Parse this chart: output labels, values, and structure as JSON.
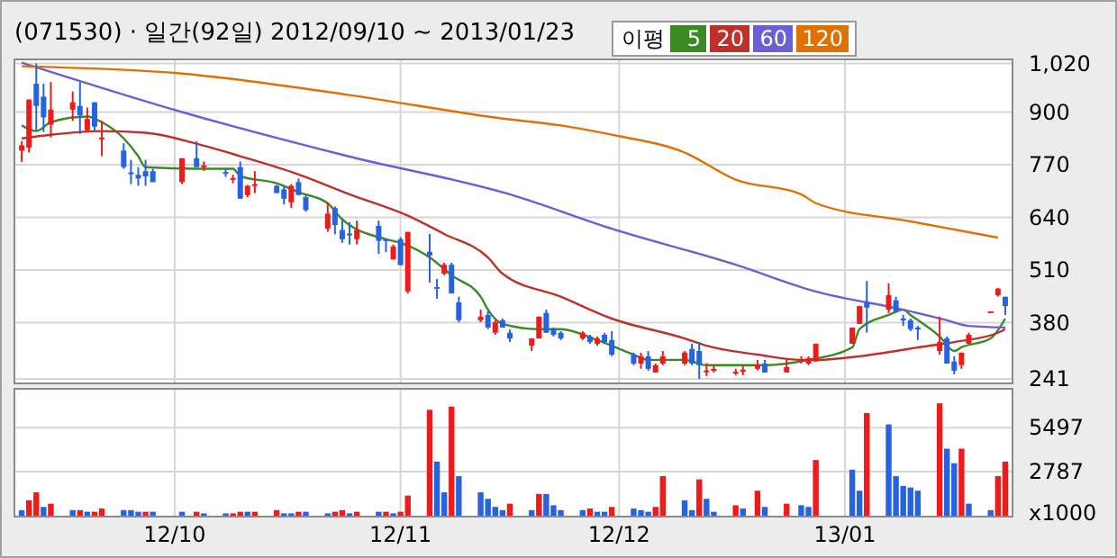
{
  "chart_data": [
    {
      "type": "candlestick",
      "title": "(071530) · 일간(92일) 2012/09/10 ~ 2013/01/23",
      "legend_title": "이평",
      "legend": "top",
      "grid": true,
      "tick_labels": "y",
      "x": [
        "2012-09-10",
        "2012-09-11",
        "2012-09-12",
        "2012-09-13",
        "2012-09-14",
        "2012-09-17",
        "2012-09-18",
        "2012-09-19",
        "2012-09-20",
        "2012-09-21",
        "2012-09-24",
        "2012-09-25",
        "2012-09-26",
        "2012-09-27",
        "2012-09-28",
        "2012-10-02",
        "2012-10-04",
        "2012-10-05",
        "2012-10-08",
        "2012-10-09",
        "2012-10-10",
        "2012-10-11",
        "2012-10-12",
        "2012-10-15",
        "2012-10-16",
        "2012-10-17",
        "2012-10-18",
        "2012-10-19",
        "2012-10-22",
        "2012-10-23",
        "2012-10-24",
        "2012-10-25",
        "2012-10-26",
        "2012-10-29",
        "2012-10-30",
        "2012-10-31",
        "2012-11-01",
        "2012-11-02",
        "2012-11-05",
        "2012-11-06",
        "2012-11-07",
        "2012-11-08",
        "2012-11-09",
        "2012-11-12",
        "2012-11-13",
        "2012-11-14",
        "2012-11-15",
        "2012-11-16",
        "2012-11-19",
        "2012-11-20",
        "2012-11-21",
        "2012-11-22",
        "2012-11-23",
        "2012-11-26",
        "2012-11-27",
        "2012-11-28",
        "2012-11-29",
        "2012-11-30",
        "2012-12-03",
        "2012-12-04",
        "2012-12-05",
        "2012-12-06",
        "2012-12-07",
        "2012-12-10",
        "2012-12-11",
        "2012-12-12",
        "2012-12-13",
        "2012-12-14",
        "2012-12-17",
        "2012-12-18",
        "2012-12-20",
        "2012-12-21",
        "2012-12-24",
        "2012-12-26",
        "2012-12-27",
        "2012-12-28",
        "2013-01-02",
        "2013-01-03",
        "2013-01-04",
        "2013-01-07",
        "2013-01-08",
        "2013-01-09",
        "2013-01-10",
        "2013-01-11",
        "2013-01-14",
        "2013-01-15",
        "2013-01-16",
        "2013-01-17",
        "2013-01-18",
        "2013-01-21",
        "2013-01-22",
        "2013-01-23"
      ],
      "ohlc": [
        [
          805,
          828,
          777,
          818
        ],
        [
          812,
          931,
          800,
          931
        ],
        [
          970,
          1020,
          855,
          915
        ],
        [
          938,
          970,
          851,
          887
        ],
        [
          869,
          974,
          837,
          906
        ],
        [
          906,
          951,
          878,
          924
        ],
        [
          915,
          974,
          846,
          892
        ],
        [
          855,
          911,
          855,
          883
        ],
        [
          924,
          924,
          855,
          864
        ],
        [
          837,
          878,
          791,
          837
        ],
        [
          805,
          823,
          760,
          764
        ],
        [
          751,
          782,
          722,
          748
        ],
        [
          745,
          764,
          718,
          736
        ],
        [
          754,
          782,
          718,
          741
        ],
        [
          754,
          760,
          727,
          727
        ],
        [
          727,
          786,
          722,
          786
        ],
        [
          786,
          828,
          764,
          764
        ],
        [
          764,
          778,
          755,
          768
        ],
        [
          752,
          760,
          740,
          748
        ],
        [
          733,
          745,
          724,
          737
        ],
        [
          764,
          778,
          686,
          686
        ],
        [
          695,
          720,
          690,
          718
        ],
        [
          720,
          754,
          700,
          722
        ],
        [
          718,
          720,
          700,
          700
        ],
        [
          709,
          718,
          672,
          686
        ],
        [
          677,
          722,
          663,
          718
        ],
        [
          727,
          736,
          695,
          695
        ],
        [
          690,
          694,
          654,
          658
        ],
        [
          612,
          676,
          604,
          649
        ],
        [
          663,
          667,
          598,
          621
        ],
        [
          609,
          632,
          577,
          586
        ],
        [
          600,
          628,
          573,
          596
        ],
        [
          586,
          632,
          573,
          609
        ],
        [
          619,
          632,
          550,
          582
        ],
        [
          586,
          586,
          554,
          582
        ],
        [
          536,
          573,
          536,
          568
        ],
        [
          586,
          591,
          522,
          522
        ],
        [
          457,
          604,
          452,
          604
        ],
        [
          555,
          599,
          479,
          546
        ],
        [
          468,
          488,
          439,
          464
        ],
        [
          501,
          528,
          497,
          523
        ],
        [
          523,
          528,
          452,
          452
        ],
        [
          430,
          444,
          381,
          386
        ],
        [
          386,
          412,
          381,
          395
        ],
        [
          399,
          408,
          364,
          368
        ],
        [
          355,
          386,
          350,
          381
        ],
        [
          386,
          390,
          368,
          368
        ],
        [
          355,
          363,
          332,
          341
        ],
        [
          323,
          341,
          310,
          341
        ],
        [
          341,
          395,
          341,
          395
        ],
        [
          404,
          412,
          355,
          355
        ],
        [
          364,
          368,
          346,
          350
        ],
        [
          355,
          359,
          337,
          341
        ],
        [
          341,
          359,
          337,
          355
        ],
        [
          346,
          350,
          328,
          332
        ],
        [
          328,
          346,
          323,
          341
        ],
        [
          350,
          355,
          328,
          332
        ],
        [
          337,
          359,
          297,
          301
        ],
        [
          301,
          306,
          275,
          279
        ],
        [
          279,
          306,
          266,
          297
        ],
        [
          297,
          310,
          261,
          266
        ],
        [
          257,
          279,
          257,
          275
        ],
        [
          279,
          310,
          275,
          297
        ],
        [
          279,
          310,
          275,
          306
        ],
        [
          315,
          328,
          275,
          279
        ],
        [
          310,
          332,
          241,
          275
        ],
        [
          259,
          280,
          248,
          262
        ],
        [
          261,
          275,
          257,
          266
        ],
        [
          255,
          266,
          250,
          259
        ],
        [
          259,
          275,
          250,
          264
        ],
        [
          266,
          288,
          262,
          275
        ],
        [
          279,
          288,
          257,
          257
        ],
        [
          257,
          292,
          257,
          270
        ],
        [
          284,
          297,
          279,
          288
        ],
        [
          279,
          297,
          275,
          292
        ],
        [
          284,
          328,
          284,
          328
        ],
        [
          328,
          368,
          328,
          368
        ],
        [
          377,
          421,
          377,
          421
        ],
        [
          430,
          483,
          355,
          417
        ],
        [
          412,
          477,
          404,
          448
        ],
        [
          435,
          444,
          404,
          408
        ],
        [
          390,
          399,
          372,
          386
        ],
        [
          386,
          390,
          359,
          364
        ],
        [
          368,
          372,
          337,
          363
        ],
        [
          310,
          395,
          301,
          332
        ],
        [
          341,
          346,
          279,
          279
        ],
        [
          284,
          297,
          252,
          261
        ],
        [
          275,
          306,
          266,
          306
        ],
        [
          328,
          355,
          328,
          350
        ],
        [
          406,
          408,
          406,
          408
        ],
        [
          448,
          466,
          444,
          464
        ],
        [
          444,
          444,
          399,
          421
        ]
      ],
      "series": [
        {
          "name": "5",
          "type": "line",
          "color": "#3a8a22",
          "x": [
            "2012-09-10",
            "2012-09-12",
            "2012-09-14",
            "2012-09-19",
            "2012-09-21",
            "2012-09-24",
            "2012-09-26",
            "2012-09-27",
            "2012-10-04",
            "2012-10-09",
            "2012-10-10",
            "2012-10-15",
            "2012-10-18",
            "2012-10-22",
            "2012-10-24",
            "2012-10-30",
            "2012-11-01",
            "2012-11-05",
            "2012-11-08",
            "2012-11-12",
            "2012-11-13",
            "2012-11-15",
            "2012-11-20",
            "2012-11-23",
            "2012-11-28",
            "2012-12-03",
            "2012-12-05",
            "2012-12-10",
            "2012-12-13",
            "2012-12-17",
            "2012-12-21",
            "2012-12-27",
            "2013-01-02",
            "2013-01-03",
            "2013-01-07",
            "2013-01-09",
            "2013-01-10",
            "2013-01-14",
            "2013-01-16",
            "2013-01-17",
            "2013-01-21",
            "2013-01-23"
          ],
          "values": [
            867,
            853,
            875,
            889,
            875,
            835,
            791,
            764,
            760,
            760,
            742,
            724,
            702,
            675,
            635,
            586,
            577,
            541,
            497,
            444,
            412,
            377,
            364,
            364,
            337,
            301,
            288,
            288,
            275,
            275,
            275,
            288,
            319,
            364,
            399,
            412,
            399,
            346,
            310,
            319,
            341,
            390
          ]
        },
        {
          "name": "20",
          "type": "line",
          "color": "#c0302a",
          "x": [
            "2012-09-10",
            "2012-09-14",
            "2012-09-21",
            "2012-09-27",
            "2012-10-04",
            "2012-10-10",
            "2012-10-18",
            "2012-10-25",
            "2012-11-02",
            "2012-11-07",
            "2012-11-13",
            "2012-11-15",
            "2012-11-23",
            "2012-11-30",
            "2012-12-10",
            "2012-12-13",
            "2012-12-20",
            "2012-12-26",
            "2012-12-28",
            "2013-01-03",
            "2013-01-08",
            "2013-01-11",
            "2013-01-16",
            "2013-01-22",
            "2013-01-23"
          ],
          "values": [
            835,
            844,
            853,
            849,
            822,
            791,
            746,
            697,
            644,
            599,
            541,
            501,
            444,
            390,
            341,
            323,
            301,
            288,
            288,
            297,
            310,
            319,
            332,
            355,
            364
          ]
        },
        {
          "name": "60",
          "type": "line",
          "color": "#6b5fd6",
          "x": [
            "2012-09-10",
            "2012-10-02",
            "2012-10-25",
            "2012-11-16",
            "2012-11-30",
            "2012-12-17",
            "2012-12-28",
            "2013-01-09",
            "2013-01-15",
            "2013-01-18",
            "2013-01-23"
          ],
          "values": [
            1022,
            900,
            790,
            697,
            612,
            523,
            457,
            412,
            386,
            372,
            368
          ]
        },
        {
          "name": "120",
          "type": "line",
          "color": "#e07000",
          "x": [
            "2012-09-10",
            "2012-10-02",
            "2012-10-25",
            "2012-11-15",
            "2012-11-23",
            "2012-11-30",
            "2012-12-10",
            "2012-12-17",
            "2012-12-26",
            "2012-12-28",
            "2013-01-10",
            "2013-01-22"
          ],
          "values": [
            1013,
            995,
            942,
            884,
            867,
            844,
            800,
            733,
            697,
            675,
            630,
            590
          ]
        }
      ],
      "xlim": [
        "2012-09-09",
        "2013-01-24"
      ],
      "xticks": [
        {
          "value": "2012-10",
          "label": null
        },
        {
          "value": "2012-11",
          "label": null
        },
        {
          "value": "2012-12",
          "label": null
        },
        {
          "value": "2013-01",
          "label": null
        }
      ],
      "ylim": [
        230,
        1030
      ],
      "yticks": [
        241,
        380,
        510,
        640,
        770,
        900,
        {
          "value": 1020,
          "label": "1,020"
        }
      ]
    },
    {
      "type": "bar",
      "ylabel": "x1000",
      "grid": true,
      "x": [
        "2012-09-10",
        "2012-09-11",
        "2012-09-12",
        "2012-09-13",
        "2012-09-14",
        "2012-09-17",
        "2012-09-18",
        "2012-09-19",
        "2012-09-20",
        "2012-09-21",
        "2012-09-24",
        "2012-09-25",
        "2012-09-26",
        "2012-09-27",
        "2012-09-28",
        "2012-10-02",
        "2012-10-04",
        "2012-10-05",
        "2012-10-08",
        "2012-10-09",
        "2012-10-10",
        "2012-10-11",
        "2012-10-12",
        "2012-10-15",
        "2012-10-16",
        "2012-10-17",
        "2012-10-18",
        "2012-10-19",
        "2012-10-22",
        "2012-10-23",
        "2012-10-24",
        "2012-10-25",
        "2012-10-26",
        "2012-10-29",
        "2012-10-30",
        "2012-10-31",
        "2012-11-01",
        "2012-11-02",
        "2012-11-05",
        "2012-11-06",
        "2012-11-07",
        "2012-11-08",
        "2012-11-09",
        "2012-11-12",
        "2012-11-13",
        "2012-11-14",
        "2012-11-15",
        "2012-11-16",
        "2012-11-19",
        "2012-11-20",
        "2012-11-21",
        "2012-11-22",
        "2012-11-23",
        "2012-11-26",
        "2012-11-27",
        "2012-11-28",
        "2012-11-29",
        "2012-11-30",
        "2012-12-03",
        "2012-12-04",
        "2012-12-05",
        "2012-12-06",
        "2012-12-07",
        "2012-12-10",
        "2012-12-11",
        "2012-12-12",
        "2012-12-13",
        "2012-12-14",
        "2012-12-17",
        "2012-12-18",
        "2012-12-20",
        "2012-12-21",
        "2012-12-24",
        "2012-12-26",
        "2012-12-27",
        "2012-12-28",
        "2013-01-02",
        "2013-01-03",
        "2013-01-04",
        "2013-01-07",
        "2013-01-08",
        "2013-01-09",
        "2013-01-10",
        "2013-01-11",
        "2013-01-14",
        "2013-01-15",
        "2013-01-16",
        "2013-01-17",
        "2013-01-18",
        "2013-01-21",
        "2013-01-22",
        "2013-01-23"
      ],
      "values": [
        400,
        1000,
        1500,
        600,
        800,
        400,
        400,
        300,
        300,
        500,
        400,
        400,
        300,
        300,
        300,
        300,
        300,
        200,
        200,
        200,
        300,
        300,
        300,
        400,
        200,
        200,
        300,
        300,
        200,
        300,
        400,
        200,
        300,
        300,
        300,
        200,
        300,
        1300,
        6600,
        3400,
        1500,
        6800,
        2500,
        1500,
        1100,
        600,
        400,
        800,
        400,
        1400,
        1400,
        700,
        400,
        400,
        500,
        300,
        300,
        600,
        500,
        400,
        300,
        600,
        2500,
        1000,
        400,
        2300,
        1100,
        300,
        700,
        500,
        1600,
        600,
        800,
        700,
        600,
        3500,
        2900,
        1600,
        6400,
        5700,
        2500,
        1900,
        1800,
        1600,
        7000,
        4200,
        3300,
        4200,
        800,
        400,
        2500,
        3400
      ],
      "colors": [
        "#2563e0",
        "#f01a1a",
        "#f01a1a",
        "#2563e0",
        "#f01a1a",
        "#2563e0",
        "#f01a1a",
        "#2563e0",
        "#f01a1a",
        "#f01a1a",
        "#2563e0",
        "#2563e0",
        "#2563e0",
        "#f01a1a",
        "#2563e0",
        "#2563e0",
        "#f01a1a",
        "#2563e0",
        "#2563e0",
        "#f01a1a",
        "#f01a1a",
        "#2563e0",
        "#f01a1a",
        "#f01a1a",
        "#2563e0",
        "#2563e0",
        "#f01a1a",
        "#2563e0",
        "#2563e0",
        "#f01a1a",
        "#f01a1a",
        "#2563e0",
        "#f01a1a",
        "#2563e0",
        "#f01a1a",
        "#2563e0",
        "#f01a1a",
        "#f01a1a",
        "#f01a1a",
        "#2563e0",
        "#2563e0",
        "#f01a1a",
        "#2563e0",
        "#2563e0",
        "#2563e0",
        "#2563e0",
        "#2563e0",
        "#f01a1a",
        "#2563e0",
        "#f01a1a",
        "#2563e0",
        "#2563e0",
        "#2563e0",
        "#2563e0",
        "#f01a1a",
        "#2563e0",
        "#2563e0",
        "#f01a1a",
        "#2563e0",
        "#2563e0",
        "#2563e0",
        "#f01a1a",
        "#f01a1a",
        "#2563e0",
        "#2563e0",
        "#f01a1a",
        "#2563e0",
        "#2563e0",
        "#f01a1a",
        "#2563e0",
        "#f01a1a",
        "#2563e0",
        "#f01a1a",
        "#2563e0",
        "#2563e0",
        "#f01a1a",
        "#2563e0",
        "#2563e0",
        "#f01a1a",
        "#2563e0",
        "#2563e0",
        "#2563e0",
        "#2563e0",
        "#2563e0",
        "#f01a1a",
        "#2563e0",
        "#2563e0",
        "#f01a1a",
        "#2563e0",
        "#2563e0",
        "#f01a1a",
        "#f01a1a"
      ],
      "xlim": [
        "2012-09-09",
        "2013-01-24"
      ],
      "xticks": [
        {
          "value": "2012-10",
          "label": "12/10"
        },
        {
          "value": "2012-11",
          "label": "12/11"
        },
        {
          "value": "2012-12",
          "label": "12/12"
        },
        {
          "value": "2013-01",
          "label": "13/01"
        }
      ],
      "ylim": [
        0,
        7900
      ],
      "yticks": [
        2787,
        5497
      ]
    }
  ]
}
